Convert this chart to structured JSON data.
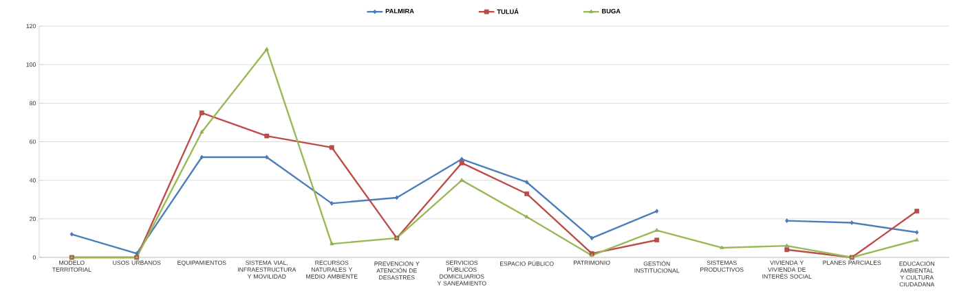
{
  "chart_data": {
    "type": "line",
    "categories": [
      "MODELO TERRITORIAL",
      "USOS URBANOS",
      "EQUIPAMIENTOS",
      "SISTEMA VIAL, INFRAESTRUCTURA Y MOVILIDAD",
      "RECURSOS NATURALES Y MEDIO AMBIENTE",
      "PREVENCIÓN Y ATENCIÓN DE DESASTRES",
      "SERVICIOS PÚBLICOS DOMICILIARIOS Y SANEAMIENTO",
      "ESPACIO PÚBLICO",
      "PATRIMONIO",
      "GESTIÓN INSTITUCIONAL",
      "SISTEMAS PRODUCTIVOS",
      "VIVIENDA Y VIVIENDA DE INTERÉS SOCIAL",
      "PLANES PARCIALES",
      "EDUCACIÓN AMBIENTAL Y CULTURA CIUDADANA"
    ],
    "series": [
      {
        "name": "PALMIRA",
        "color": "#4a7ebb",
        "marker": "diamond",
        "values": [
          12,
          2,
          52,
          52,
          28,
          31,
          51,
          39,
          10,
          24,
          null,
          19,
          18,
          13
        ]
      },
      {
        "name": "TULUÁ",
        "color": "#be4b48",
        "marker": "square",
        "values": [
          0,
          0,
          75,
          63,
          57,
          10,
          49,
          33,
          2,
          9,
          null,
          4,
          0,
          24
        ]
      },
      {
        "name": "BUGA",
        "color": "#98b954",
        "marker": "triangle",
        "values": [
          0,
          0,
          65,
          108,
          7,
          10,
          40,
          21,
          1,
          14,
          5,
          6,
          0,
          9
        ]
      }
    ],
    "ylim": [
      0,
      120
    ],
    "yticks": [
      0,
      20,
      40,
      60,
      80,
      100,
      120
    ],
    "grid": "y",
    "legend": "top",
    "line_style": "solid"
  }
}
